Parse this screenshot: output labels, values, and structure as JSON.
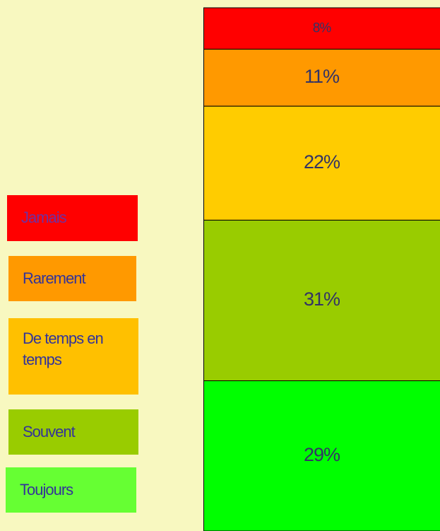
{
  "chart_data": {
    "type": "stacked_bar",
    "series": [
      {
        "name": "Jamais",
        "color": "#ff0000",
        "legend_color": "#ff0000",
        "values": [
          8
        ],
        "value_labels": [
          "8%"
        ]
      },
      {
        "name": "Rarement",
        "color": "#ff9900",
        "legend_color": "#ff9900",
        "values": [
          11
        ],
        "value_labels": [
          "11%"
        ]
      },
      {
        "name": "De temps en temps",
        "color": "#ffcc00",
        "legend_color": "#ffc000",
        "values": [
          22
        ],
        "value_labels": [
          "22%"
        ]
      },
      {
        "name": "Souvent",
        "color": "#99cc00",
        "legend_color": "#99cc00",
        "values": [
          31
        ],
        "value_labels": [
          "31%"
        ]
      },
      {
        "name": "Toujours",
        "color": "#00ff00",
        "legend_color": "#66ff33",
        "values": [
          29
        ],
        "value_labels": [
          "29%"
        ]
      }
    ],
    "legend": "left"
  }
}
